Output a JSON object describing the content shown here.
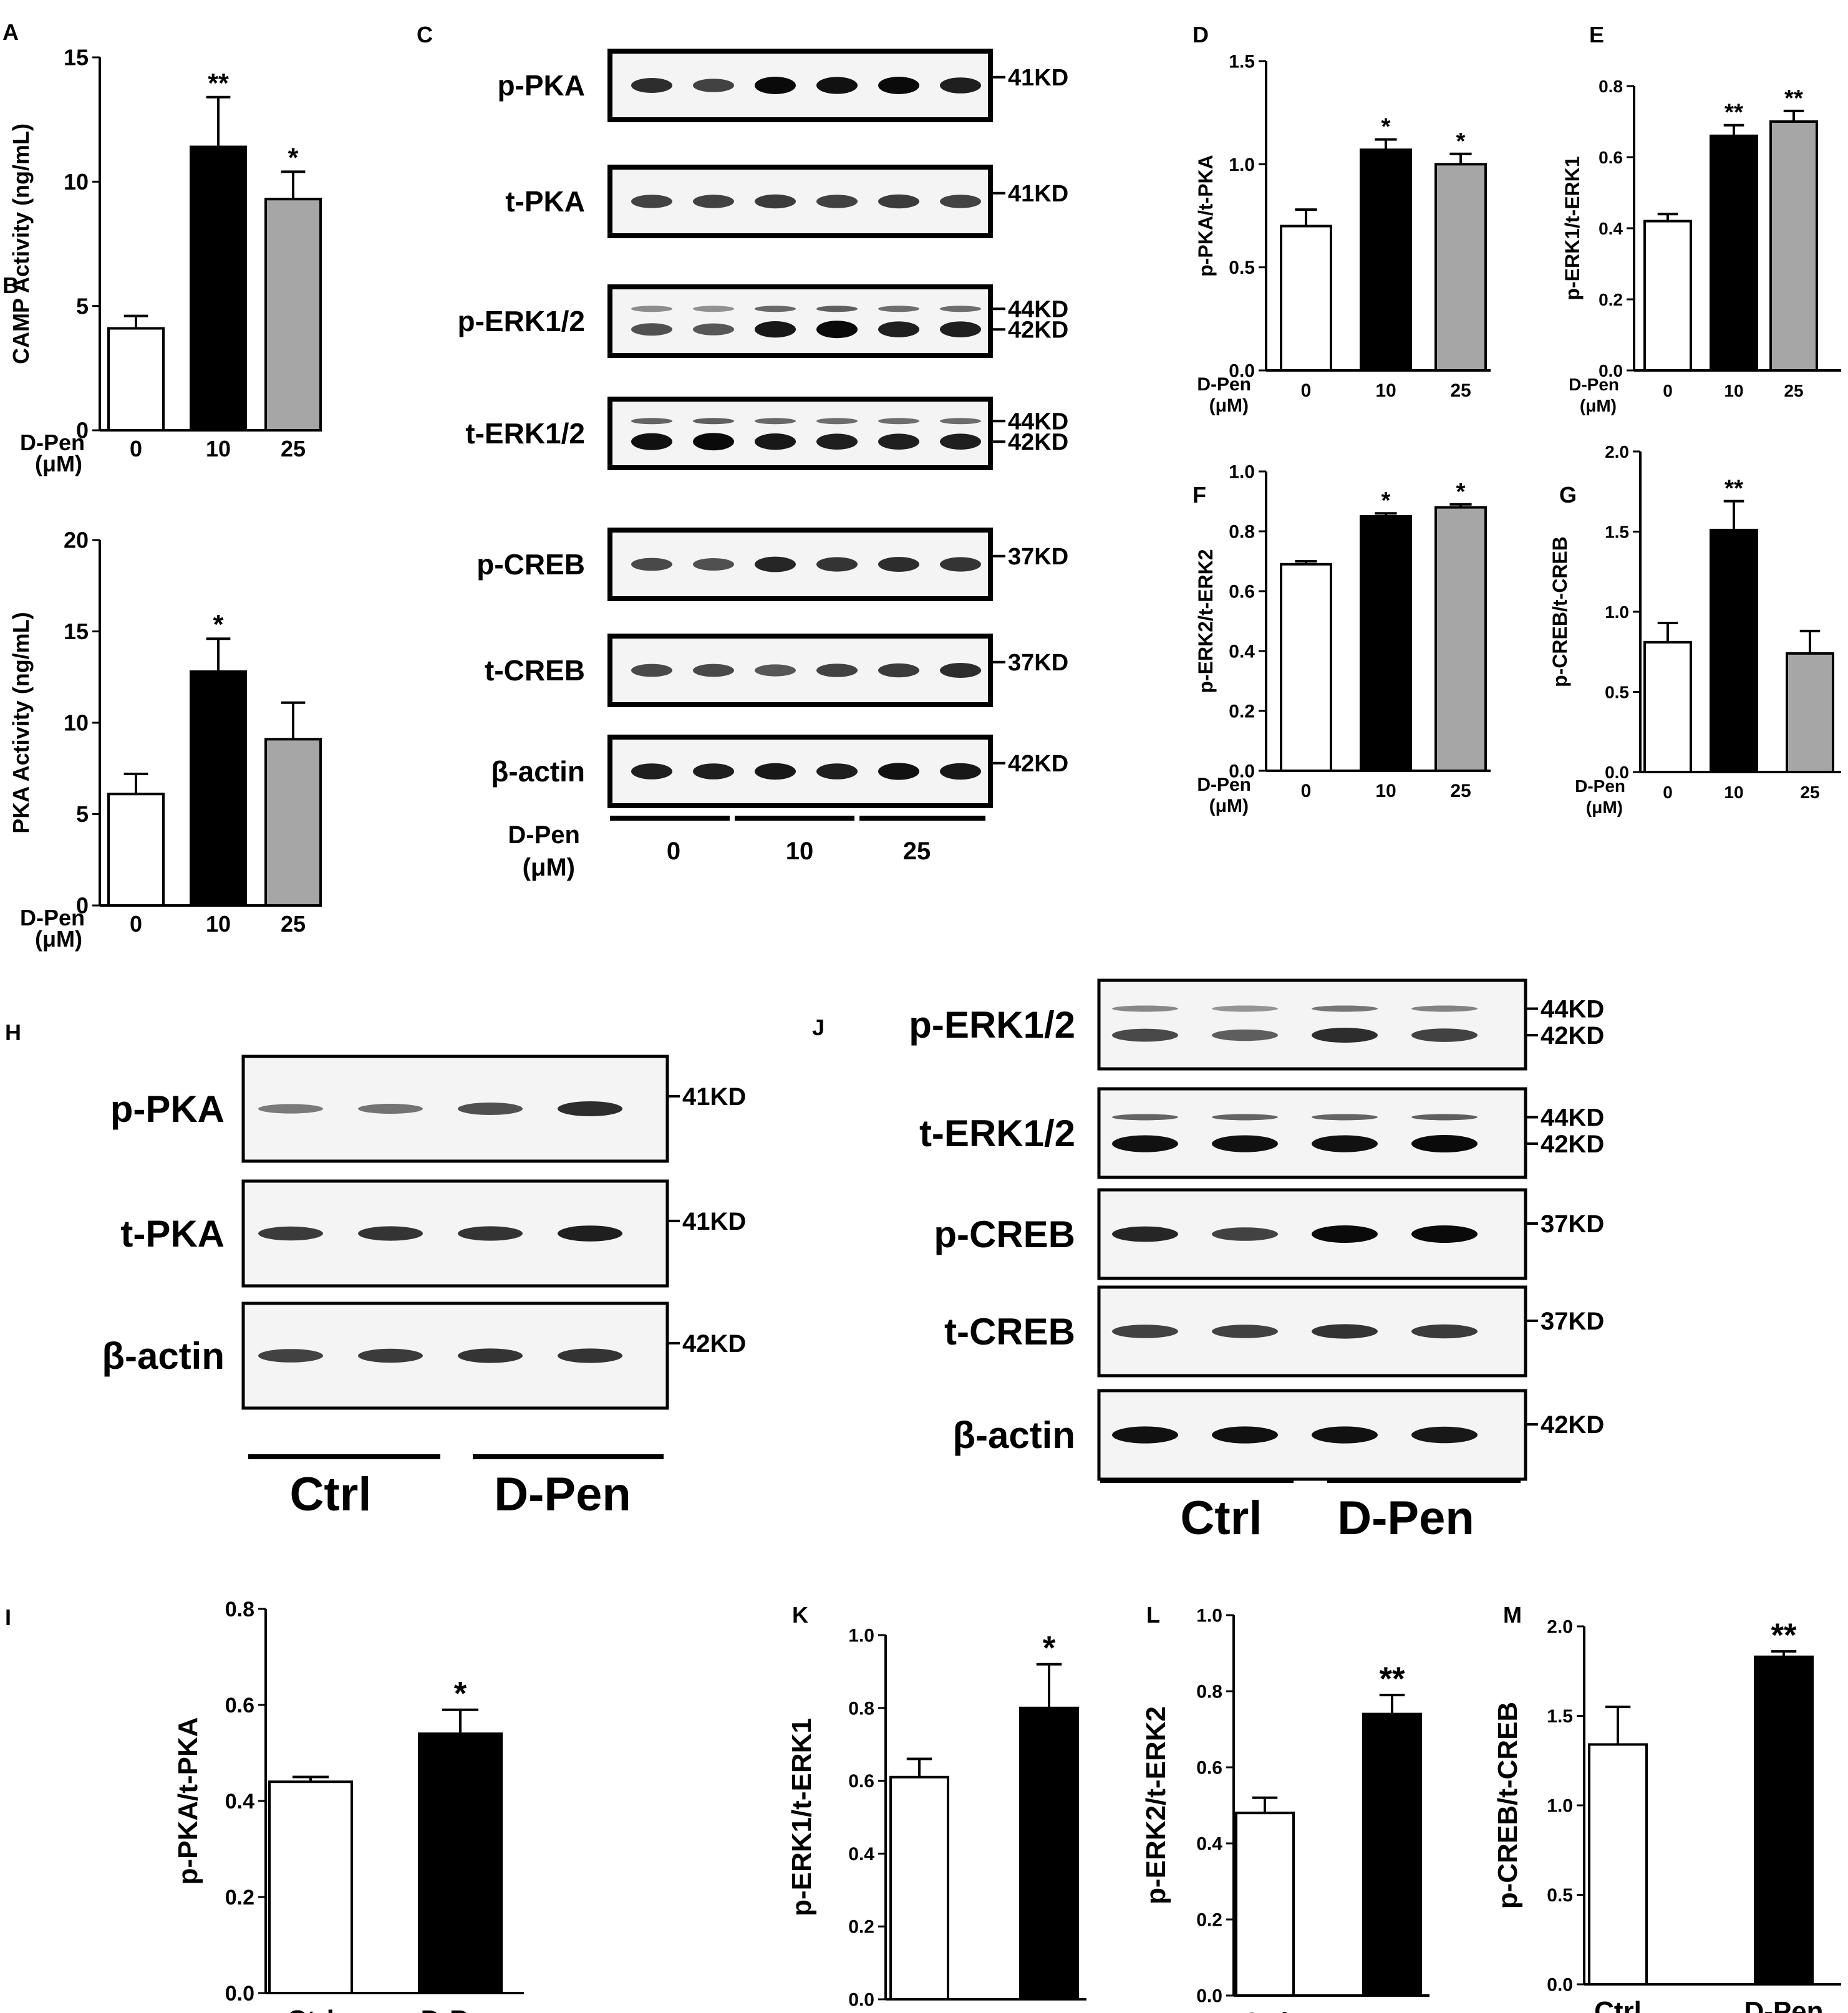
{
  "chart_data": [
    {
      "panel": "A",
      "type": "bar",
      "ylabel": "CAMP Activity (ng/mL)",
      "xlabel": [
        "D-Pen",
        "(μM)"
      ],
      "categories": [
        "0",
        "10",
        "25"
      ],
      "values": [
        4.1,
        11.4,
        9.3
      ],
      "errors": [
        0.5,
        2.0,
        1.1
      ],
      "significance": [
        "",
        "**",
        "*"
      ],
      "bar_colors": [
        "#ffffff",
        "#000000",
        "#a6a6a6"
      ],
      "ylim": [
        0,
        15
      ],
      "yticks": [
        "0",
        "5",
        "10",
        "15"
      ]
    },
    {
      "panel": "B",
      "type": "bar",
      "ylabel": "PKA Activity (ng/mL)",
      "xlabel": [
        "D-Pen",
        "(μM)"
      ],
      "categories": [
        "0",
        "10",
        "25"
      ],
      "values": [
        6.1,
        12.8,
        9.1
      ],
      "errors": [
        1.1,
        1.8,
        2.0
      ],
      "significance": [
        "",
        "*",
        ""
      ],
      "bar_colors": [
        "#ffffff",
        "#000000",
        "#a6a6a6"
      ],
      "ylim": [
        0,
        20
      ],
      "yticks": [
        "0",
        "5",
        "10",
        "15",
        "20"
      ]
    },
    {
      "panel": "D",
      "type": "bar",
      "ylabel": "p-PKA/t-PKA",
      "xlabel": [
        "D-Pen",
        "(μM)"
      ],
      "categories": [
        "0",
        "10",
        "25"
      ],
      "values": [
        0.7,
        1.07,
        1.0
      ],
      "errors": [
        0.08,
        0.05,
        0.05
      ],
      "significance": [
        "",
        "*",
        "*"
      ],
      "bar_colors": [
        "#ffffff",
        "#000000",
        "#a6a6a6"
      ],
      "ylim": [
        0,
        1.5
      ],
      "yticks": [
        "0.0",
        "0.5",
        "1.0",
        "1.5"
      ]
    },
    {
      "panel": "E",
      "type": "bar",
      "ylabel": "p-ERK1/t-ERK1",
      "xlabel": [
        "D-Pen",
        "(μM)"
      ],
      "categories": [
        "0",
        "10",
        "25"
      ],
      "values": [
        0.42,
        0.66,
        0.7
      ],
      "errors": [
        0.02,
        0.03,
        0.03
      ],
      "significance": [
        "",
        "**",
        "**"
      ],
      "bar_colors": [
        "#ffffff",
        "#000000",
        "#a6a6a6"
      ],
      "ylim": [
        0,
        0.8
      ],
      "yticks": [
        "0.0",
        "0.2",
        "0.4",
        "0.6",
        "0.8"
      ]
    },
    {
      "panel": "F",
      "type": "bar",
      "ylabel": "p-ERK2/t-ERK2",
      "xlabel": [
        "D-Pen",
        "(μM)"
      ],
      "categories": [
        "0",
        "10",
        "25"
      ],
      "values": [
        0.69,
        0.85,
        0.88
      ],
      "errors": [
        0.01,
        0.01,
        0.01
      ],
      "significance": [
        "",
        "*",
        "*"
      ],
      "bar_colors": [
        "#ffffff",
        "#000000",
        "#a6a6a6"
      ],
      "ylim": [
        0,
        1.0
      ],
      "yticks": [
        "0.0",
        "0.2",
        "0.4",
        "0.6",
        "0.8",
        "1.0"
      ]
    },
    {
      "panel": "G",
      "type": "bar",
      "ylabel": "p-CREB/t-CREB",
      "xlabel": [
        "D-Pen",
        "(μM)"
      ],
      "categories": [
        "0",
        "10",
        "25"
      ],
      "values": [
        0.81,
        1.51,
        0.74
      ],
      "errors": [
        0.12,
        0.18,
        0.14
      ],
      "significance": [
        "",
        "**",
        ""
      ],
      "bar_colors": [
        "#ffffff",
        "#000000",
        "#a6a6a6"
      ],
      "ylim": [
        0,
        2.0
      ],
      "yticks": [
        "0.0",
        "0.5",
        "1.0",
        "1.5",
        "2.0"
      ]
    },
    {
      "panel": "I",
      "type": "bar",
      "ylabel": "p-PKA/t-PKA",
      "categories": [
        "Ctrl",
        "D-Pen"
      ],
      "values": [
        0.44,
        0.54
      ],
      "errors": [
        0.01,
        0.05
      ],
      "significance": [
        "",
        "*"
      ],
      "bar_colors": [
        "#ffffff",
        "#000000"
      ],
      "ylim": [
        0,
        0.8
      ],
      "yticks": [
        "0.0",
        "0.2",
        "0.4",
        "0.6",
        "0.8"
      ]
    },
    {
      "panel": "K",
      "type": "bar",
      "ylabel": "p-ERK1/t-ERK1",
      "categories": [
        "Ctrl",
        "D-Pen"
      ],
      "values": [
        0.61,
        0.8
      ],
      "errors": [
        0.05,
        0.12
      ],
      "significance": [
        "",
        "*"
      ],
      "bar_colors": [
        "#ffffff",
        "#000000"
      ],
      "ylim": [
        0,
        1.0
      ],
      "yticks": [
        "0.0",
        "0.2",
        "0.4",
        "0.6",
        "0.8",
        "1.0"
      ]
    },
    {
      "panel": "L",
      "type": "bar",
      "ylabel": "p-ERK2/t-ERK2",
      "categories": [
        "Ctrl",
        "D-Pen"
      ],
      "values": [
        0.48,
        0.74
      ],
      "errors": [
        0.04,
        0.05
      ],
      "significance": [
        "",
        "**"
      ],
      "bar_colors": [
        "#ffffff",
        "#000000"
      ],
      "ylim": [
        0,
        1.0
      ],
      "yticks": [
        "0.0",
        "0.2",
        "0.4",
        "0.6",
        "0.8",
        "1.0"
      ]
    },
    {
      "panel": "M",
      "type": "bar",
      "ylabel": "p-CREB/t-CREB",
      "categories": [
        "Ctrl",
        "D-Pen"
      ],
      "values": [
        1.34,
        1.83
      ],
      "errors": [
        0.21,
        0.03
      ],
      "significance": [
        "",
        "**"
      ],
      "bar_colors": [
        "#ffffff",
        "#000000"
      ],
      "ylim": [
        0,
        2.0
      ],
      "yticks": [
        "0.0",
        "0.5",
        "1.0",
        "1.5",
        "2.0"
      ]
    }
  ],
  "blots": [
    {
      "panel": "C",
      "rows": [
        {
          "label": "p-PKA",
          "markers": [
            "41KD"
          ],
          "intensity": [
            0.75,
            0.6,
            1.0,
            0.95,
            1.0,
            0.85
          ],
          "lines": 1
        },
        {
          "label": "t-PKA",
          "markers": [
            "41KD"
          ],
          "intensity": [
            0.6,
            0.6,
            0.65,
            0.6,
            0.65,
            0.6
          ],
          "lines": 1
        },
        {
          "label": "p-ERK1/2",
          "markers": [
            "44KD",
            "42KD"
          ],
          "intensity": [
            0.5,
            0.45,
            0.9,
            1.0,
            0.85,
            0.85
          ],
          "lines": 2
        },
        {
          "label": "t-ERK1/2",
          "markers": [
            "44KD",
            "42KD"
          ],
          "intensity": [
            0.95,
            1.0,
            0.9,
            0.85,
            0.85,
            0.85
          ],
          "lines": 2
        },
        {
          "label": "p-CREB",
          "markers": [
            "37KD"
          ],
          "intensity": [
            0.55,
            0.5,
            0.8,
            0.7,
            0.75,
            0.7
          ],
          "lines": 1
        },
        {
          "label": "t-CREB",
          "markers": [
            "37KD"
          ],
          "intensity": [
            0.55,
            0.55,
            0.45,
            0.6,
            0.65,
            0.75
          ],
          "lines": 1
        },
        {
          "label": "β-actin",
          "markers": [
            "42KD"
          ],
          "intensity": [
            0.85,
            0.85,
            0.9,
            0.85,
            0.95,
            0.9
          ],
          "lines": 1
        }
      ],
      "group_label": [
        "D-Pen",
        "(μM)"
      ],
      "groups": [
        "0",
        "10",
        "25"
      ]
    },
    {
      "panel": "H",
      "rows": [
        {
          "label": "p-PKA",
          "markers": [
            "41KD"
          ],
          "intensity": [
            0.2,
            0.25,
            0.5,
            0.75
          ],
          "lines": 1
        },
        {
          "label": "t-PKA",
          "markers": [
            "41KD"
          ],
          "intensity": [
            0.65,
            0.7,
            0.7,
            0.85
          ],
          "lines": 1
        },
        {
          "label": "β-actin",
          "markers": [
            "42KD"
          ],
          "intensity": [
            0.6,
            0.65,
            0.7,
            0.7
          ],
          "lines": 1
        }
      ],
      "groups": [
        "Ctrl",
        "D-Pen"
      ]
    },
    {
      "panel": "J",
      "rows": [
        {
          "label": "p-ERK1/2",
          "markers": [
            "44KD",
            "42KD"
          ],
          "intensity": [
            0.55,
            0.4,
            0.75,
            0.6
          ],
          "lines": 2
        },
        {
          "label": "t-ERK1/2",
          "markers": [
            "44KD",
            "42KD"
          ],
          "intensity": [
            0.95,
            0.95,
            0.95,
            1.0
          ],
          "lines": 2
        },
        {
          "label": "p-CREB",
          "markers": [
            "37KD"
          ],
          "intensity": [
            0.8,
            0.6,
            1.0,
            1.0
          ],
          "lines": 1
        },
        {
          "label": "t-CREB",
          "markers": [
            "37KD"
          ],
          "intensity": [
            0.6,
            0.6,
            0.7,
            0.65
          ],
          "lines": 1
        },
        {
          "label": "β-actin",
          "markers": [
            "42KD"
          ],
          "intensity": [
            0.95,
            0.95,
            0.95,
            0.9
          ],
          "lines": 1
        }
      ],
      "groups": [
        "Ctrl",
        "D-Pen"
      ]
    }
  ]
}
